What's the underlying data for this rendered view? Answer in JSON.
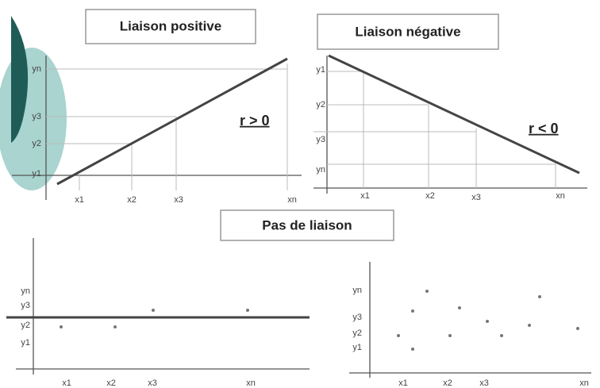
{
  "positive": {
    "title": "Liaison positive",
    "note": "r > 0",
    "x_labels": [
      "x1",
      "x2",
      "x3",
      "xn"
    ],
    "y_labels": [
      "yn",
      "y3",
      "y2",
      "y1"
    ]
  },
  "negative": {
    "title": "Liaison négative",
    "note": "r < 0",
    "x_labels": [
      "x1",
      "x2",
      "x3",
      "xn"
    ],
    "y_labels": [
      "y1",
      "y2",
      "y3",
      "yn"
    ]
  },
  "none": {
    "title": "Pas de liaison",
    "left": {
      "x_labels": [
        "x1",
        "x2",
        "x3",
        "xn"
      ],
      "y_labels": [
        "yn",
        "y3",
        "y2",
        "y1"
      ]
    },
    "right": {
      "x_labels": [
        "x1",
        "x2",
        "x3",
        "xn"
      ],
      "y_labels": [
        "yn",
        "y3",
        "y2",
        "y1"
      ]
    }
  }
}
